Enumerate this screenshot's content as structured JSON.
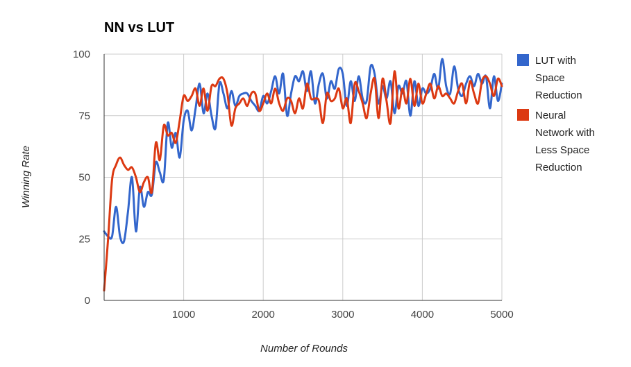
{
  "chart_data": {
    "type": "line",
    "title": "NN vs LUT",
    "xlabel": "Number of Rounds",
    "ylabel": "Winning Rate",
    "xlim": [
      0,
      5000
    ],
    "ylim": [
      0,
      100
    ],
    "x_ticks": [
      1000,
      2000,
      3000,
      4000,
      5000
    ],
    "y_ticks": [
      0,
      25,
      50,
      75,
      100
    ],
    "grid": true,
    "legend_position": "right",
    "series": [
      {
        "name": "LUT with Space Reduction",
        "color": "#3366cc",
        "x": [
          0,
          50,
          100,
          150,
          200,
          250,
          300,
          350,
          400,
          450,
          500,
          550,
          600,
          650,
          700,
          750,
          800,
          850,
          900,
          950,
          1000,
          1050,
          1100,
          1150,
          1200,
          1250,
          1300,
          1350,
          1400,
          1450,
          1500,
          1550,
          1600,
          1650,
          1700,
          1750,
          1800,
          1850,
          1900,
          1950,
          2000,
          2050,
          2100,
          2150,
          2200,
          2250,
          2300,
          2350,
          2400,
          2450,
          2500,
          2550,
          2600,
          2650,
          2700,
          2750,
          2800,
          2850,
          2900,
          2950,
          3000,
          3050,
          3100,
          3150,
          3200,
          3250,
          3300,
          3350,
          3400,
          3450,
          3500,
          3550,
          3600,
          3650,
          3700,
          3750,
          3800,
          3850,
          3900,
          3950,
          4000,
          4050,
          4100,
          4150,
          4200,
          4250,
          4300,
          4350,
          4400,
          4450,
          4500,
          4550,
          4600,
          4650,
          4700,
          4750,
          4800,
          4850,
          4900,
          4950,
          5000
        ],
        "values": [
          28,
          26,
          26,
          38,
          26,
          24,
          36,
          50,
          28,
          46,
          38,
          44,
          43,
          56,
          52,
          49,
          72,
          62,
          68,
          58,
          73,
          77,
          69,
          78,
          88,
          76,
          84,
          75,
          70,
          88,
          84,
          78,
          85,
          79,
          83,
          84,
          84,
          81,
          79,
          77,
          83,
          80,
          85,
          91,
          84,
          92,
          75,
          84,
          91,
          89,
          93,
          85,
          93,
          80,
          88,
          92,
          82,
          89,
          86,
          94,
          92,
          79,
          89,
          81,
          91,
          82,
          81,
          95,
          92,
          80,
          87,
          82,
          89,
          76,
          87,
          84,
          89,
          75,
          89,
          79,
          86,
          84,
          86,
          92,
          86,
          98,
          87,
          84,
          95,
          86,
          83,
          88,
          91,
          87,
          92,
          88,
          91,
          78,
          91,
          81,
          88
        ]
      },
      {
        "name": "Neural Network with Less Space Reduction",
        "color": "#dc3912",
        "x": [
          0,
          50,
          100,
          150,
          200,
          250,
          300,
          350,
          400,
          450,
          500,
          550,
          600,
          650,
          700,
          750,
          800,
          850,
          900,
          950,
          1000,
          1050,
          1100,
          1150,
          1200,
          1250,
          1300,
          1350,
          1400,
          1450,
          1500,
          1550,
          1600,
          1650,
          1700,
          1750,
          1800,
          1850,
          1900,
          1950,
          2000,
          2050,
          2100,
          2150,
          2200,
          2250,
          2300,
          2350,
          2400,
          2450,
          2500,
          2550,
          2600,
          2650,
          2700,
          2750,
          2800,
          2850,
          2900,
          2950,
          3000,
          3050,
          3100,
          3150,
          3200,
          3250,
          3300,
          3350,
          3400,
          3450,
          3500,
          3550,
          3600,
          3650,
          3700,
          3750,
          3800,
          3850,
          3900,
          3950,
          4000,
          4050,
          4100,
          4150,
          4200,
          4250,
          4300,
          4350,
          4400,
          4450,
          4500,
          4550,
          4600,
          4650,
          4700,
          4750,
          4800,
          4850,
          4900,
          4950,
          5000
        ],
        "values": [
          4,
          25,
          49,
          55,
          58,
          55,
          53,
          54,
          50,
          44,
          48,
          50,
          44,
          64,
          57,
          71,
          67,
          68,
          64,
          73,
          83,
          81,
          83,
          86,
          79,
          86,
          77,
          87,
          87,
          90,
          90,
          84,
          71,
          78,
          80,
          82,
          79,
          84,
          84,
          77,
          80,
          84,
          80,
          86,
          80,
          77,
          82,
          81,
          76,
          82,
          78,
          88,
          82,
          82,
          81,
          72,
          84,
          81,
          82,
          86,
          78,
          82,
          72,
          88,
          85,
          80,
          74,
          84,
          90,
          74,
          90,
          81,
          72,
          93,
          78,
          86,
          80,
          90,
          79,
          88,
          80,
          84,
          88,
          82,
          87,
          83,
          84,
          82,
          80,
          85,
          88,
          80,
          89,
          84,
          80,
          89,
          91,
          88,
          83,
          90,
          87
        ]
      }
    ]
  }
}
